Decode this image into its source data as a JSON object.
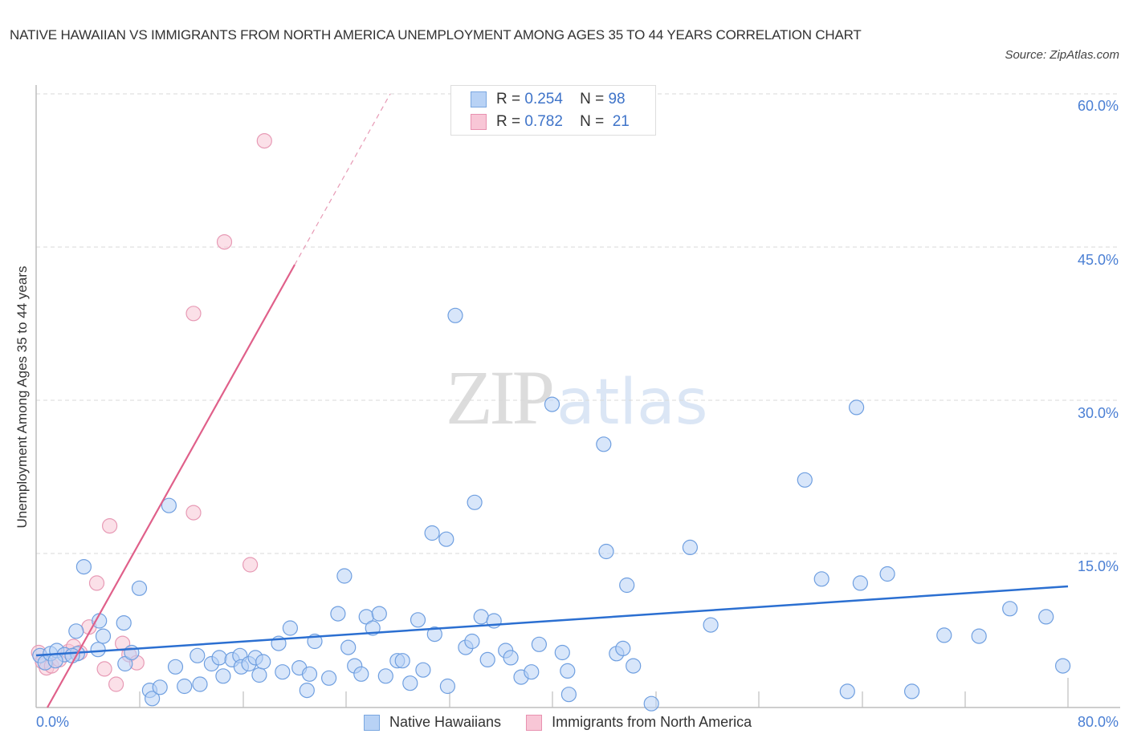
{
  "header": {
    "title": "NATIVE HAWAIIAN VS IMMIGRANTS FROM NORTH AMERICA UNEMPLOYMENT AMONG AGES 35 TO 44 YEARS CORRELATION CHART",
    "source": "Source: ZipAtlas.com"
  },
  "watermark": {
    "zip": "ZIP",
    "atlas": "atlas"
  },
  "legend": {
    "rows": [
      {
        "r_label": "R =",
        "r_value": "0.254",
        "n_label": "N =",
        "n_value": "98",
        "color": "#b8d2f5",
        "border": "#7aa7e0"
      },
      {
        "r_label": "R =",
        "r_value": "0.782",
        "n_label": "N =",
        "n_value": "21",
        "color": "#f8c6d6",
        "border": "#e891b0"
      }
    ]
  },
  "axes": {
    "ylabel": "Unemployment Among Ages 35 to 44 years",
    "y_ticks": [
      "60.0%",
      "45.0%",
      "30.0%",
      "15.0%"
    ],
    "x_min_label": "0.0%",
    "x_max_label": "80.0%"
  },
  "bottom_legend": {
    "series_a": "Native Hawaiians",
    "series_b": "Immigrants from North America"
  },
  "colors": {
    "blue_fill": "#b8d2f5",
    "blue_stroke": "#6f9fe0",
    "blue_line": "#2b6fd1",
    "pink_fill": "#f8c6d6",
    "pink_stroke": "#e79ab5",
    "pink_line": "#e0608a",
    "tick_label": "#4a7fd4"
  },
  "chart_data": {
    "type": "scatter",
    "title": "NATIVE HAWAIIAN VS IMMIGRANTS FROM NORTH AMERICA UNEMPLOYMENT AMONG AGES 35 TO 44 YEARS CORRELATION CHART",
    "xlabel": "",
    "ylabel": "Unemployment Among Ages 35 to 44 years",
    "xlim": [
      0,
      80
    ],
    "ylim": [
      0,
      60
    ],
    "x_tick_labels": [
      "0.0%",
      "80.0%"
    ],
    "y_tick_labels": [
      "15.0%",
      "30.0%",
      "45.0%",
      "60.0%"
    ],
    "grid": true,
    "legend_position": "bottom",
    "series": [
      {
        "name": "Native Hawaiians",
        "R": 0.254,
        "N": 98,
        "trendline": {
          "x": [
            0,
            80
          ],
          "y": [
            5.0,
            11.5
          ]
        },
        "points": [
          [
            0.3,
            5.0
          ],
          [
            0.7,
            4.3
          ],
          [
            1.1,
            5.2
          ],
          [
            1.6,
            5.5
          ],
          [
            2.2,
            5.1
          ],
          [
            3.2,
            5.2
          ],
          [
            3.7,
            13.7
          ],
          [
            3.1,
            7.4
          ],
          [
            4.8,
            5.6
          ],
          [
            4.9,
            8.4
          ],
          [
            5.2,
            6.9
          ],
          [
            6.8,
            8.2
          ],
          [
            6.9,
            4.2
          ],
          [
            7.4,
            5.3
          ],
          [
            8.0,
            11.6
          ],
          [
            8.8,
            1.6
          ],
          [
            9.0,
            0.8
          ],
          [
            9.6,
            1.9
          ],
          [
            10.3,
            19.7
          ],
          [
            10.8,
            3.9
          ],
          [
            11.5,
            2.0
          ],
          [
            12.5,
            5.0
          ],
          [
            12.7,
            2.2
          ],
          [
            13.6,
            4.2
          ],
          [
            14.2,
            4.8
          ],
          [
            14.5,
            3.0
          ],
          [
            15.2,
            4.6
          ],
          [
            15.8,
            5.0
          ],
          [
            15.9,
            3.9
          ],
          [
            16.5,
            4.2
          ],
          [
            17.0,
            4.8
          ],
          [
            17.3,
            3.1
          ],
          [
            17.6,
            4.4
          ],
          [
            18.8,
            6.2
          ],
          [
            19.1,
            3.4
          ],
          [
            19.7,
            7.7
          ],
          [
            20.4,
            3.8
          ],
          [
            21.2,
            3.2
          ],
          [
            21.0,
            1.6
          ],
          [
            21.6,
            6.4
          ],
          [
            22.7,
            2.8
          ],
          [
            23.4,
            9.1
          ],
          [
            23.9,
            12.8
          ],
          [
            24.2,
            5.8
          ],
          [
            24.7,
            4.0
          ],
          [
            25.2,
            3.2
          ],
          [
            25.6,
            8.8
          ],
          [
            26.1,
            7.7
          ],
          [
            26.6,
            9.1
          ],
          [
            27.1,
            3.0
          ],
          [
            28.0,
            4.5
          ],
          [
            28.4,
            4.5
          ],
          [
            29.0,
            2.3
          ],
          [
            29.6,
            8.5
          ],
          [
            30.0,
            3.6
          ],
          [
            30.7,
            17.0
          ],
          [
            30.9,
            7.1
          ],
          [
            31.8,
            16.4
          ],
          [
            31.9,
            2.0
          ],
          [
            32.5,
            38.3
          ],
          [
            33.3,
            5.8
          ],
          [
            33.8,
            6.4
          ],
          [
            34.0,
            20.0
          ],
          [
            34.5,
            8.8
          ],
          [
            35.0,
            4.6
          ],
          [
            35.5,
            8.4
          ],
          [
            36.4,
            5.5
          ],
          [
            36.8,
            4.8
          ],
          [
            37.6,
            2.9
          ],
          [
            38.4,
            3.4
          ],
          [
            39.0,
            6.1
          ],
          [
            40.0,
            29.6
          ],
          [
            40.8,
            5.3
          ],
          [
            41.2,
            3.5
          ],
          [
            41.3,
            1.2
          ],
          [
            44.0,
            25.7
          ],
          [
            44.2,
            15.2
          ],
          [
            45.0,
            5.2
          ],
          [
            45.5,
            5.7
          ],
          [
            45.8,
            11.9
          ],
          [
            46.3,
            4.0
          ],
          [
            47.7,
            0.3
          ],
          [
            50.7,
            15.6
          ],
          [
            52.3,
            8.0
          ],
          [
            59.6,
            22.2
          ],
          [
            60.9,
            12.5
          ],
          [
            62.9,
            1.5
          ],
          [
            63.6,
            29.3
          ],
          [
            63.9,
            12.1
          ],
          [
            66.0,
            13.0
          ],
          [
            67.9,
            1.5
          ],
          [
            70.4,
            7.0
          ],
          [
            73.1,
            6.9
          ],
          [
            75.5,
            9.6
          ],
          [
            78.3,
            8.8
          ],
          [
            79.6,
            4.0
          ],
          [
            1.5,
            4.5
          ],
          [
            2.8,
            5.0
          ]
        ]
      },
      {
        "name": "Immigrants from North America",
        "R": 0.782,
        "N": 21,
        "trendline": {
          "x": [
            0.9,
            20.3
          ],
          "y": [
            0.0,
            43.3
          ],
          "dashed_extension_to": [
            27.2,
            60.0
          ]
        },
        "points": [
          [
            0.2,
            5.3
          ],
          [
            0.5,
            4.4
          ],
          [
            0.8,
            3.8
          ],
          [
            1.2,
            4.0
          ],
          [
            1.8,
            4.6
          ],
          [
            2.5,
            5.4
          ],
          [
            2.9,
            5.9
          ],
          [
            3.4,
            5.3
          ],
          [
            4.1,
            7.8
          ],
          [
            4.7,
            12.1
          ],
          [
            5.3,
            3.7
          ],
          [
            5.7,
            17.7
          ],
          [
            6.2,
            2.2
          ],
          [
            6.7,
            6.2
          ],
          [
            7.2,
            5.1
          ],
          [
            7.8,
            4.3
          ],
          [
            12.2,
            38.5
          ],
          [
            12.2,
            19.0
          ],
          [
            14.6,
            45.5
          ],
          [
            16.6,
            13.9
          ],
          [
            17.7,
            55.4
          ]
        ]
      }
    ]
  }
}
